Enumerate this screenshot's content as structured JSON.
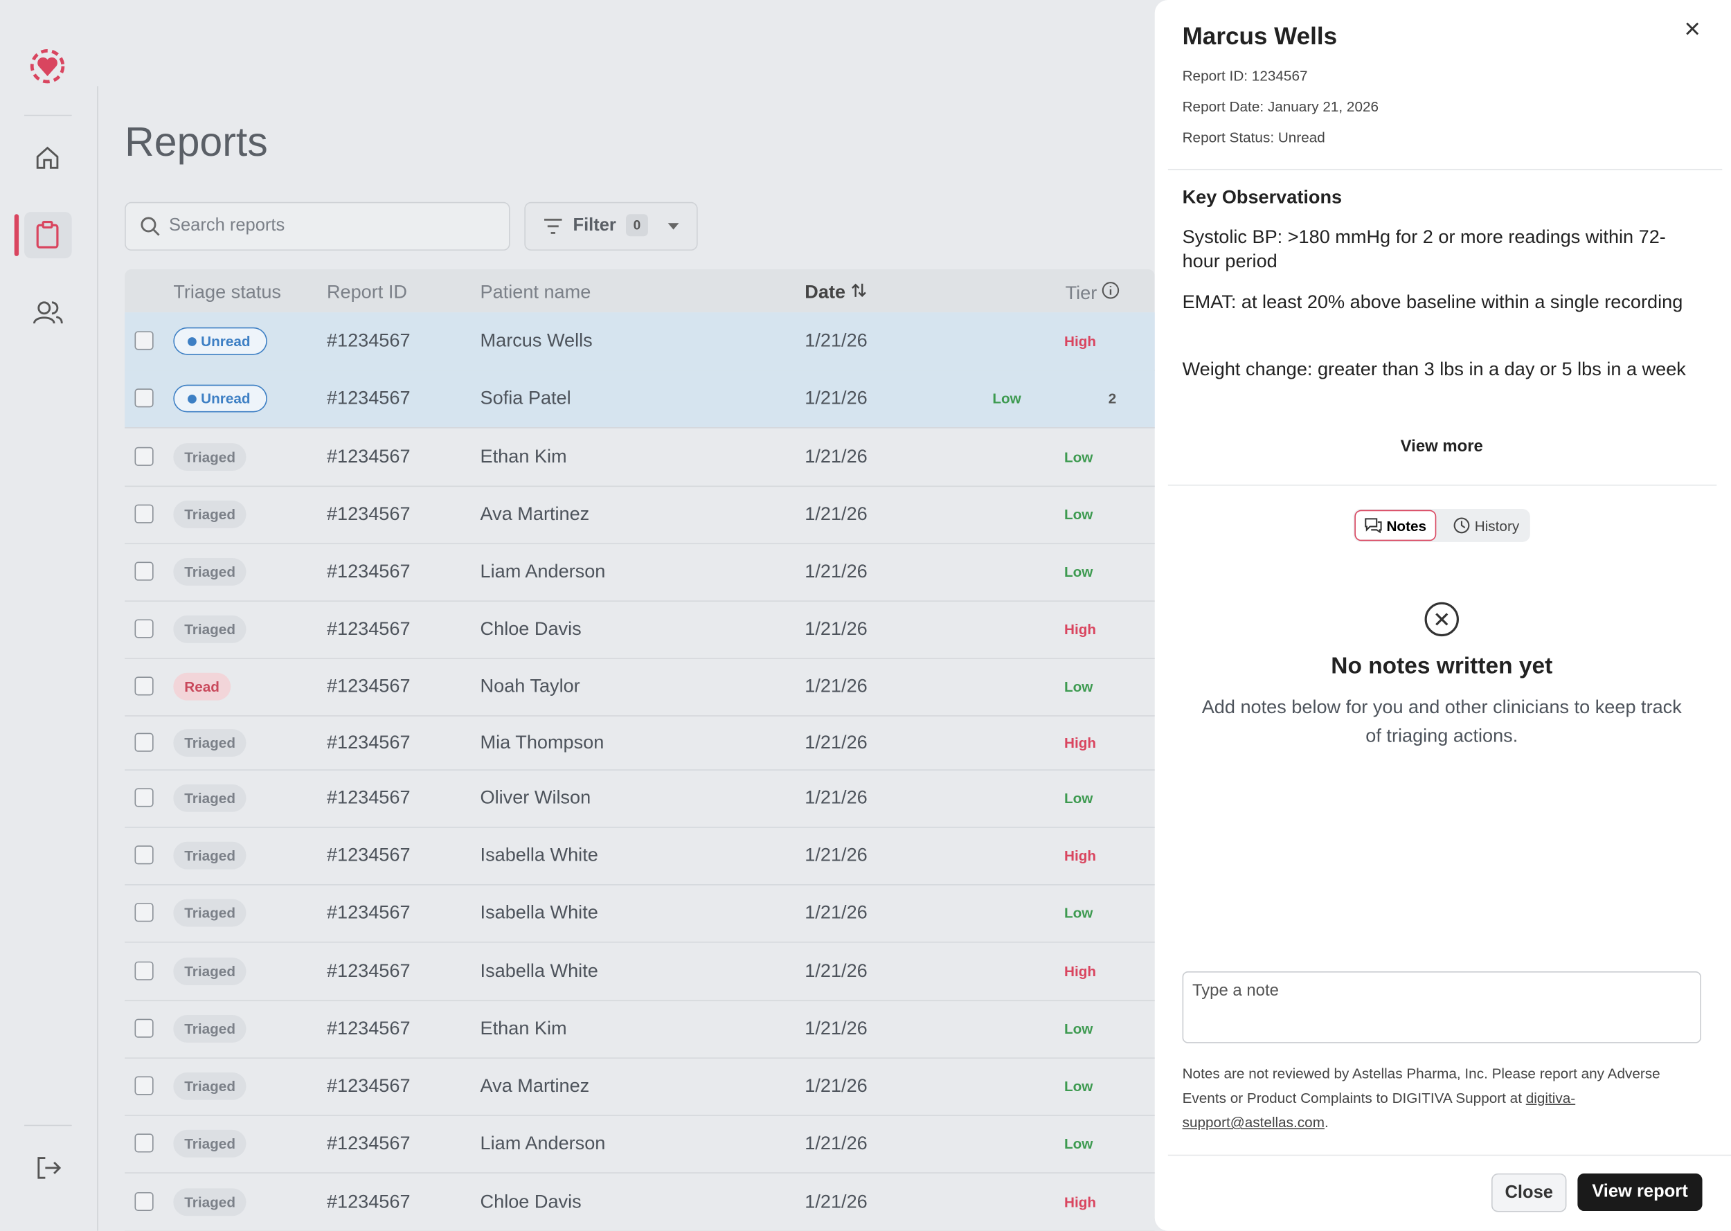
{
  "page": {
    "title": "Reports",
    "search_placeholder": "Search reports",
    "filter": {
      "label": "Filter",
      "count": "0"
    }
  },
  "table": {
    "columns": [
      "Triage status",
      "Report ID",
      "Patient name",
      "Date",
      "Tier"
    ],
    "rows": [
      {
        "status": "Unread",
        "id": "#1234567",
        "name": "Marcus Wells",
        "date": "1/21/26",
        "tier": "High"
      },
      {
        "status": "Unread",
        "id": "#1234567",
        "name": "Sofia Patel",
        "date": "1/21/26",
        "tier": "Low",
        "count": "2"
      },
      {
        "status": "Triaged",
        "id": "#1234567",
        "name": "Ethan Kim",
        "date": "1/21/26",
        "tier": "Low"
      },
      {
        "status": "Triaged",
        "id": "#1234567",
        "name": "Ava Martinez",
        "date": "1/21/26",
        "tier": "Low"
      },
      {
        "status": "Triaged",
        "id": "#1234567",
        "name": "Liam Anderson",
        "date": "1/21/26",
        "tier": "Low"
      },
      {
        "status": "Triaged",
        "id": "#1234567",
        "name": "Chloe Davis",
        "date": "1/21/26",
        "tier": "High"
      },
      {
        "status": "Read",
        "id": "#1234567",
        "name": "Noah Taylor",
        "date": "1/21/26",
        "tier": "Low"
      },
      {
        "status": "Triaged",
        "id": "#1234567",
        "name": "Mia Thompson",
        "date": "1/21/26",
        "tier": "High"
      },
      {
        "status": "Triaged",
        "id": "#1234567",
        "name": "Oliver Wilson",
        "date": "1/21/26",
        "tier": "Low"
      },
      {
        "status": "Triaged",
        "id": "#1234567",
        "name": "Isabella White",
        "date": "1/21/26",
        "tier": "High"
      },
      {
        "status": "Triaged",
        "id": "#1234567",
        "name": "Isabella White",
        "date": "1/21/26",
        "tier": "Low"
      },
      {
        "status": "Triaged",
        "id": "#1234567",
        "name": "Isabella White",
        "date": "1/21/26",
        "tier": "High"
      },
      {
        "status": "Triaged",
        "id": "#1234567",
        "name": "Ethan Kim",
        "date": "1/21/26",
        "tier": "Low"
      },
      {
        "status": "Triaged",
        "id": "#1234567",
        "name": "Ava Martinez",
        "date": "1/21/26",
        "tier": "Low"
      },
      {
        "status": "Triaged",
        "id": "#1234567",
        "name": "Liam Anderson",
        "date": "1/21/26",
        "tier": "Low"
      },
      {
        "status": "Triaged",
        "id": "#1234567",
        "name": "Chloe Davis",
        "date": "1/21/26",
        "tier": "High"
      }
    ]
  },
  "panel": {
    "title": "Marcus Wells",
    "meta": [
      "Report ID: 1234567",
      "Report Date: January 21, 2026",
      "Report Status: Unread"
    ],
    "observations_title": "Key Observations",
    "observations": [
      "Systolic BP: >180 mmHg for 2 or more readings within 72-hour period",
      "EMAT: at least 20% above baseline within a single recording",
      "Weight change: greater than 3 lbs in a day or 5 lbs in a week"
    ],
    "view_more": "View more",
    "tabs": [
      "Notes",
      "History"
    ],
    "empty_title": "No notes written yet",
    "empty_text": "Add notes below for you and other clinicians to keep track of triaging actions.",
    "note_placeholder": "Type a note",
    "disclaimer": {
      "text": "Notes are not reviewed by Astellas Pharma, Inc. Please report any Adverse Events or Product Complaints to DIGITIVA Support at ",
      "link": "digitiva-support@astellas.com",
      "end": "."
    },
    "buttons": [
      "Close",
      "View report"
    ]
  }
}
